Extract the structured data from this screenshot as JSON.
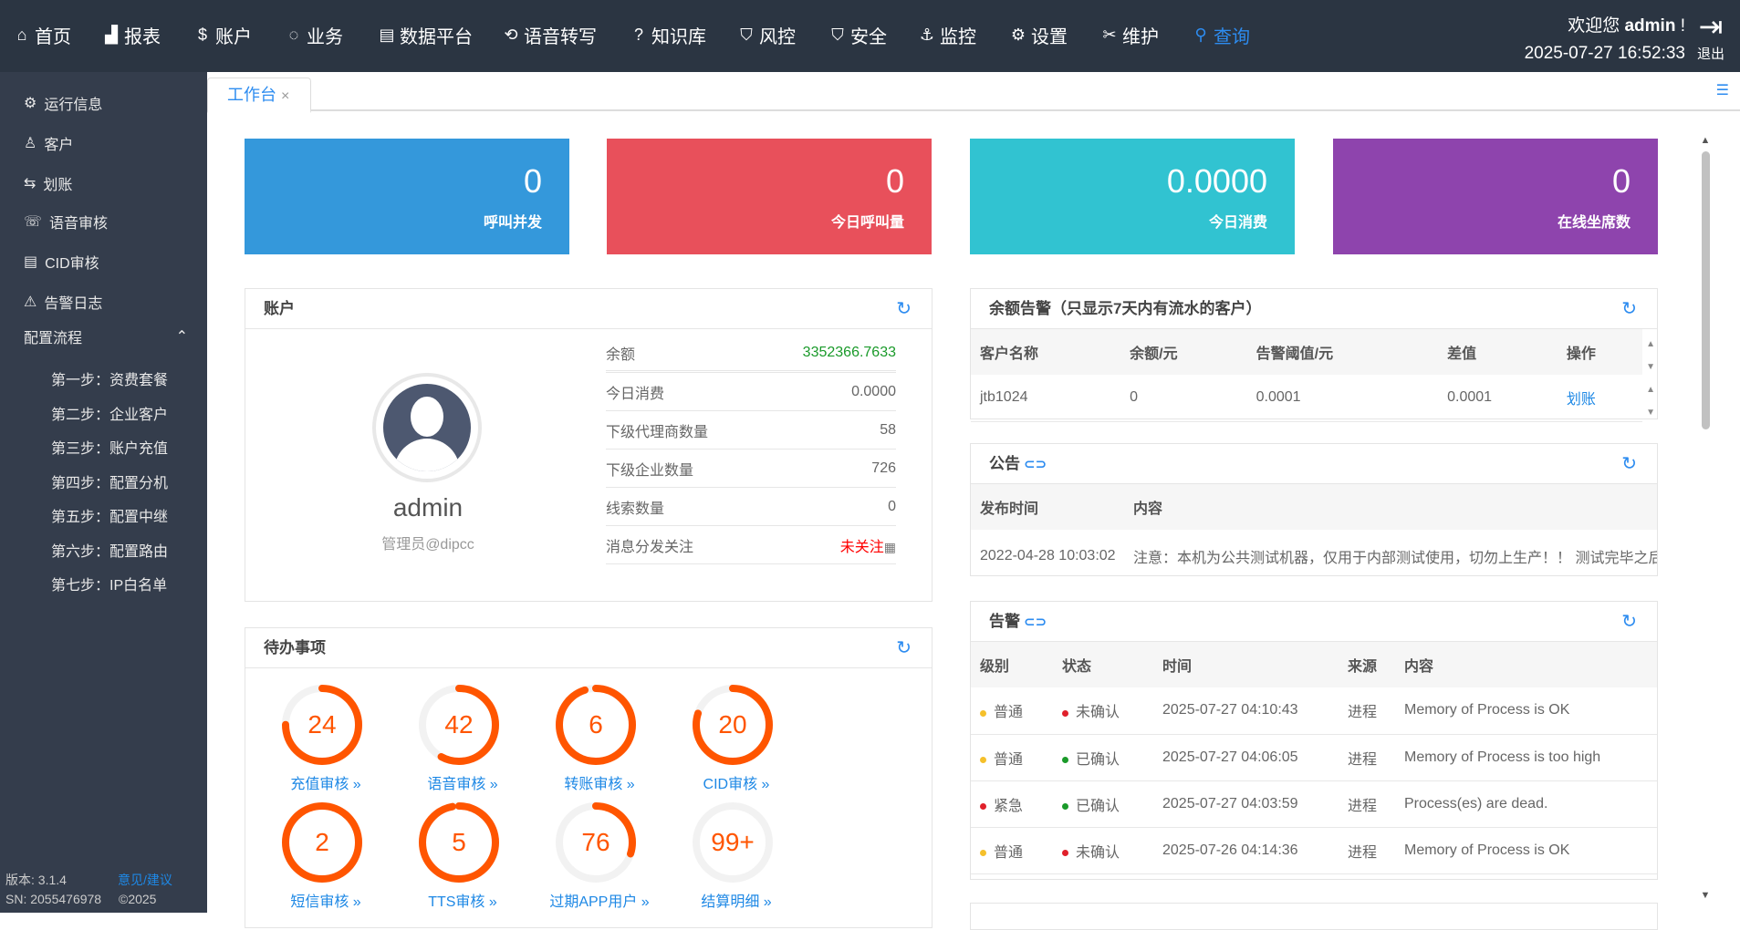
{
  "header": {
    "nav": [
      {
        "icon": "home-icon",
        "glyph": "⌂",
        "label": "首页"
      },
      {
        "icon": "chart-icon",
        "glyph": "▟",
        "label": "报表"
      },
      {
        "icon": "dollar-icon",
        "glyph": "$",
        "label": "账户"
      },
      {
        "icon": "cycle-icon",
        "glyph": "◌",
        "label": "业务"
      },
      {
        "icon": "document-icon",
        "glyph": "▤",
        "label": "数据平台"
      },
      {
        "icon": "link-icon",
        "glyph": "⟲",
        "label": "语音转写"
      },
      {
        "icon": "question-icon",
        "glyph": "?",
        "label": "知识库"
      },
      {
        "icon": "shield-icon",
        "glyph": "⛉",
        "label": "风控"
      },
      {
        "icon": "shield-check-icon",
        "glyph": "⛉",
        "label": "安全"
      },
      {
        "icon": "monitor-icon",
        "glyph": "⚓",
        "label": "监控"
      },
      {
        "icon": "gear-icon",
        "glyph": "⚙",
        "label": "设置"
      },
      {
        "icon": "tools-icon",
        "glyph": "✂",
        "label": "维护"
      },
      {
        "icon": "search-icon",
        "glyph": "⚲",
        "label": "查询"
      }
    ],
    "welcome_prefix": "欢迎您",
    "user": "admin",
    "welcome_suffix": "!",
    "datetime": "2025-07-27 16:52:33",
    "logout": "退出"
  },
  "sidebar": {
    "items": [
      {
        "icon": "gear-icon",
        "glyph": "⚙",
        "label": "运行信息"
      },
      {
        "icon": "user-icon",
        "glyph": "♙",
        "label": "客户"
      },
      {
        "icon": "transfer-icon",
        "glyph": "⇆",
        "label": "划账"
      },
      {
        "icon": "phone-icon",
        "glyph": "☏",
        "label": "语音审核"
      },
      {
        "icon": "list-icon",
        "glyph": "▤",
        "label": "CID审核"
      },
      {
        "icon": "warning-icon",
        "glyph": "⚠",
        "label": "告警日志"
      }
    ],
    "group": "配置流程",
    "steps": [
      "第一步：资费套餐",
      "第二步：企业客户",
      "第三步：账户充值",
      "第四步：配置分机",
      "第五步：配置中继",
      "第六步：配置路由",
      "第七步：IP白名单"
    ],
    "version": "版本: 3.1.4",
    "feedback": "意见/建议",
    "sn": "SN: 2055476978",
    "copyright": "©2025"
  },
  "tabs": [
    {
      "label": "工作台",
      "active": true
    }
  ],
  "stats": [
    {
      "value": "0",
      "label": "呼叫并发",
      "color": "#3498db"
    },
    {
      "value": "0",
      "label": "今日呼叫量",
      "color": "#e8505b"
    },
    {
      "value": "0.0000",
      "label": "今日消费",
      "color": "#31c3d1"
    },
    {
      "value": "0",
      "label": "在线坐席数",
      "color": "#8e44ad"
    }
  ],
  "account": {
    "title": "账户",
    "name": "admin",
    "role": "管理员@dipcc",
    "rows": [
      {
        "k": "余额",
        "v": "3352366.7633",
        "color": "#1a9a2a"
      },
      {
        "k": "今日消费",
        "v": "0.0000"
      },
      {
        "k": "下级代理商数量",
        "v": "58"
      },
      {
        "k": "下级企业数量",
        "v": "726"
      },
      {
        "k": "线索数量",
        "v": "0"
      },
      {
        "k": "消息分发关注",
        "v": "未关注",
        "color": "#ff0000"
      }
    ]
  },
  "todo": {
    "title": "待办事项",
    "items": [
      {
        "value": "24",
        "label": "充值审核",
        "progress": 0.75
      },
      {
        "value": "42",
        "label": "语音审核",
        "progress": 0.58
      },
      {
        "value": "6",
        "label": "转账审核",
        "progress": 0.95
      },
      {
        "value": "20",
        "label": "CID审核",
        "progress": 0.8
      },
      {
        "value": "2",
        "label": "短信审核",
        "progress": 1.0
      },
      {
        "value": "5",
        "label": "TTS审核",
        "progress": 0.97
      },
      {
        "value": "76",
        "label": "过期APP用户",
        "progress": 0.3
      },
      {
        "value": "99+",
        "label": "结算明细",
        "progress": 0
      }
    ]
  },
  "balance_alert": {
    "title": "余额告警（只显示7天内有流水的客户）",
    "columns": [
      "客户名称",
      "余额/元",
      "告警阈值/元",
      "差值",
      "操作"
    ],
    "rows": [
      [
        "jtb1024",
        "0",
        "0.0001",
        "0.0001",
        "划账"
      ]
    ]
  },
  "notice": {
    "title": "公告",
    "columns": [
      "发布时间",
      "内容"
    ],
    "rows": [
      [
        "2022-04-28 10:03:02",
        "注意：本机为公共测试机器，仅用于内部测试使用，切勿上生产！！ 测试完毕之后"
      ]
    ]
  },
  "alarm": {
    "title": "告警",
    "columns": [
      "级别",
      "状态",
      "时间",
      "来源",
      "内容"
    ],
    "rows": [
      {
        "level": "普通",
        "level_color": "#f5c02b",
        "status": "未确认",
        "status_color": "#e0202b",
        "time": "2025-07-27 04:10:43",
        "source": "进程",
        "content": "Memory of Process is OK"
      },
      {
        "level": "普通",
        "level_color": "#f5c02b",
        "status": "已确认",
        "status_color": "#1a9a2a",
        "time": "2025-07-27 04:06:05",
        "source": "进程",
        "content": "Memory of Process is too high"
      },
      {
        "level": "紧急",
        "level_color": "#e0202b",
        "status": "已确认",
        "status_color": "#1a9a2a",
        "time": "2025-07-27 04:03:59",
        "source": "进程",
        "content": "Process(es) are dead."
      },
      {
        "level": "普通",
        "level_color": "#f5c02b",
        "status": "未确认",
        "status_color": "#e0202b",
        "time": "2025-07-26 04:14:36",
        "source": "进程",
        "content": "Memory of Process is OK"
      }
    ]
  }
}
